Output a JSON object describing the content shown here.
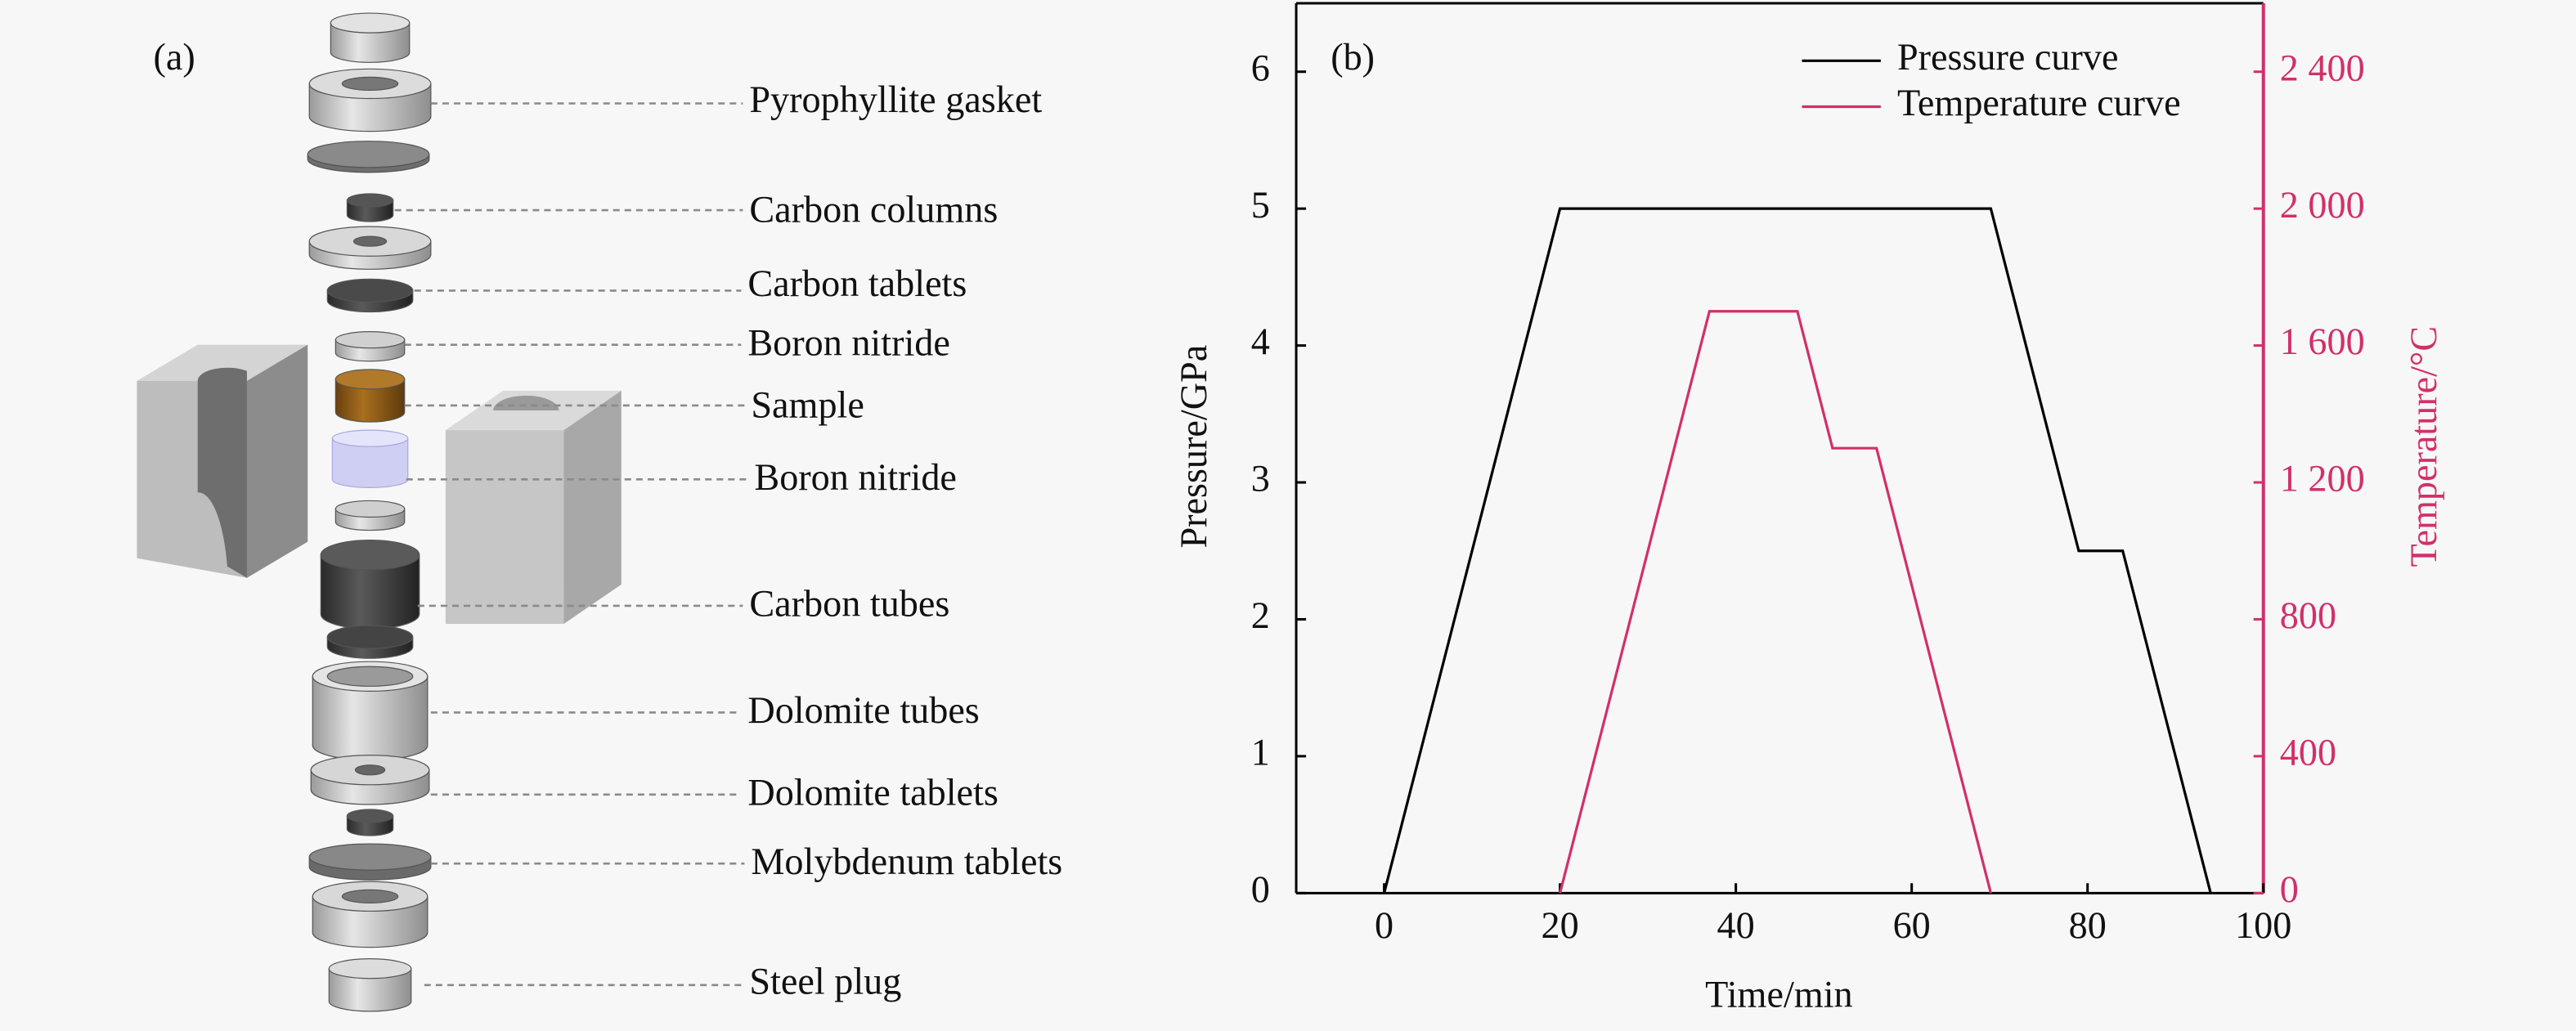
{
  "diagram": {
    "panel_label": "(a)",
    "labels": [
      "Pyrophyllite gasket",
      "Carbon columns",
      "Carbon tablets",
      "Boron nitride",
      "Sample",
      "Boron nitride",
      "Carbon tubes",
      "Dolomite tubes",
      "Dolomite tablets",
      "Molybdenum tablets",
      "Steel plug"
    ]
  },
  "chart_data": {
    "type": "line",
    "panel_label": "(b)",
    "x_label": "Time/min",
    "y_label": "Pressure/GPa",
    "y2_label": "Temperature/°C",
    "xlim": [
      -10,
      100
    ],
    "xticks": [
      0,
      20,
      40,
      60,
      80,
      100
    ],
    "ylim": [
      0,
      6.5
    ],
    "yticks": [
      0,
      1,
      2,
      3,
      4,
      5,
      6
    ],
    "y2lim": [
      0,
      2600
    ],
    "y2ticks": [
      0,
      400,
      800,
      {
        "value": 1200,
        "label": "1 200"
      },
      {
        "value": 1600,
        "label": "1 600"
      },
      {
        "value": 2000,
        "label": "2 000"
      },
      {
        "value": 2400,
        "label": "2 400"
      }
    ],
    "y2_color": "#d1306a",
    "legend": "upper right",
    "series": [
      {
        "name": "Pressure curve",
        "color": "#000000",
        "x": [
          0,
          20,
          69,
          79,
          84,
          94
        ],
        "values": [
          0,
          5,
          5,
          2.5,
          2.5,
          0
        ]
      },
      {
        "name": "Temperature curve",
        "color": "#d1306a",
        "axis": "y2",
        "x": [
          20,
          37,
          47,
          51,
          56,
          69
        ],
        "values": [
          0,
          1700,
          1700,
          1300,
          1300,
          0
        ]
      }
    ]
  }
}
